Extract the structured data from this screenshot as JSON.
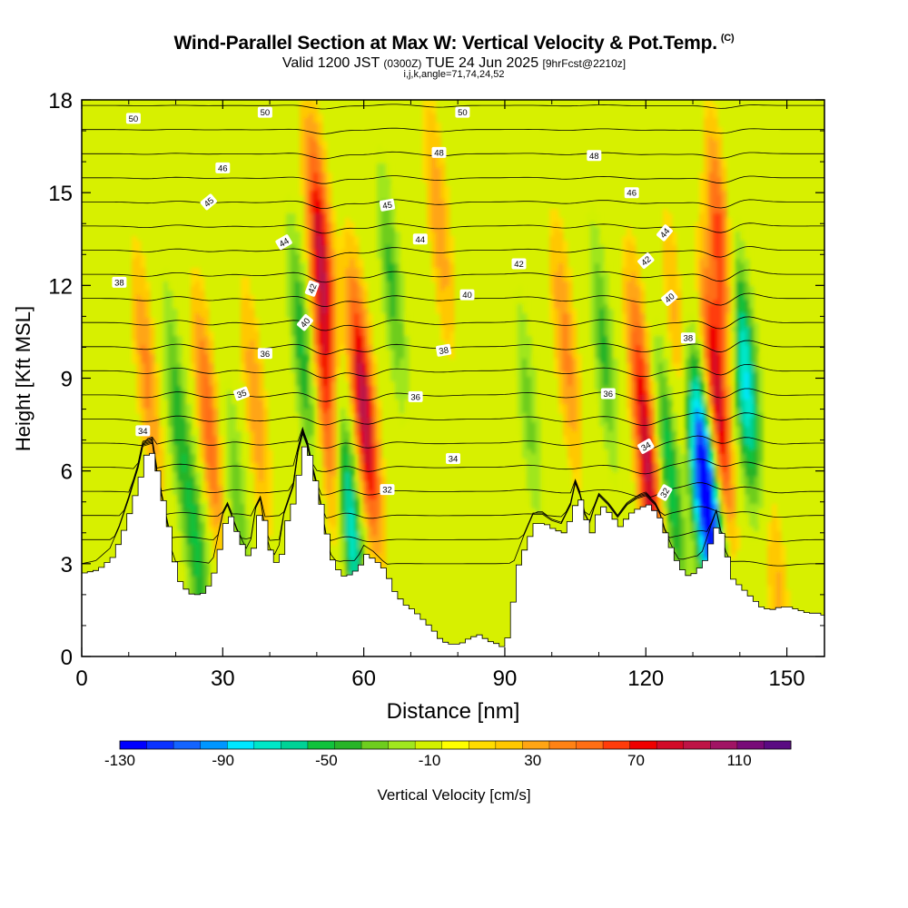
{
  "header": {
    "title": "Wind-Parallel Section at Max W: Vertical Velocity & Pot.Temp.",
    "copyright": "(C)",
    "valid_prefix": "Valid 1200 JST",
    "valid_utc": "(0300Z)",
    "valid_date": "TUE 24 Jun 2025",
    "forecast": "[9hrFcst@2210z]",
    "grid_info": "i,j,k,angle=71,74,24,52"
  },
  "chart_data": {
    "type": "heatmap",
    "xlabel": "Distance [nm]",
    "ylabel": "Height [Kft MSL]",
    "xlim": [
      0,
      158
    ],
    "ylim": [
      0,
      18
    ],
    "x_ticks": [
      0,
      30,
      60,
      90,
      120,
      150
    ],
    "y_ticks": [
      0,
      3,
      6,
      9,
      12,
      15,
      18
    ],
    "colorbar": {
      "label": "Vertical Velocity [cm/s]",
      "range": [
        -130,
        130
      ],
      "tick_values": [
        -130,
        -90,
        -50,
        -10,
        30,
        70,
        110
      ],
      "colors": [
        "#0000ff",
        "#0a32ff",
        "#1464ff",
        "#0096ff",
        "#00e6ff",
        "#00e6c8",
        "#00d296",
        "#10c23c",
        "#28b428",
        "#6ecd1e",
        "#a0e61e",
        "#d2f000",
        "#ffff00",
        "#ffdc00",
        "#ffc800",
        "#ffa514",
        "#ff8214",
        "#ff6e14",
        "#ff3c0a",
        "#f00000",
        "#d20a28",
        "#be1446",
        "#a01464",
        "#780a78",
        "#5a0a82"
      ]
    },
    "terrain": {
      "x": [
        0,
        3,
        6,
        8,
        10,
        12,
        13,
        15,
        16,
        18,
        19,
        20,
        21,
        22,
        23,
        25,
        27,
        28,
        29,
        30,
        31,
        33,
        35,
        36,
        37,
        38,
        39,
        40,
        41,
        42,
        43,
        45,
        46,
        47,
        48,
        49,
        50,
        51,
        52,
        53,
        54,
        55,
        56,
        57,
        58,
        59,
        60,
        62,
        64,
        66,
        68,
        70,
        72,
        74,
        76,
        78,
        80,
        82,
        84,
        86,
        88,
        89,
        90,
        91,
        92,
        94,
        96,
        98,
        100,
        102,
        104,
        105,
        106,
        107,
        108,
        109,
        110,
        112,
        114,
        116,
        118,
        120,
        122,
        123,
        124,
        126,
        128,
        130,
        132,
        134,
        135,
        136,
        138,
        140,
        142,
        144,
        146,
        148,
        150,
        152,
        154,
        156,
        158
      ],
      "z": [
        2.7,
        2.8,
        3.2,
        3.9,
        4.8,
        5.8,
        6.5,
        6.6,
        5.6,
        4.2,
        3.2,
        2.5,
        2.3,
        2.1,
        2.0,
        2.0,
        2.4,
        2.9,
        3.6,
        4.3,
        4.6,
        3.8,
        3.2,
        3.5,
        4.5,
        4.8,
        3.8,
        3.2,
        3.0,
        3.3,
        4.3,
        5.2,
        6.3,
        6.9,
        6.5,
        5.8,
        5.2,
        4.5,
        3.6,
        3.0,
        2.8,
        2.6,
        2.6,
        2.7,
        2.8,
        3.0,
        3.3,
        3.1,
        2.8,
        2.1,
        1.7,
        1.5,
        1.2,
        0.9,
        0.5,
        0.4,
        0.4,
        0.6,
        0.7,
        0.5,
        0.4,
        0.3,
        0.6,
        1.5,
        2.8,
        3.6,
        4.3,
        4.3,
        4.1,
        4.0,
        4.6,
        5.3,
        4.9,
        4.3,
        4.0,
        4.5,
        4.9,
        4.6,
        4.2,
        4.6,
        4.8,
        4.9,
        4.6,
        4.3,
        3.8,
        3.1,
        2.6,
        2.7,
        3.1,
        4.0,
        4.4,
        3.7,
        2.5,
        2.2,
        1.9,
        1.6,
        1.5,
        1.6,
        1.6,
        1.5,
        1.4,
        1.4,
        1.3
      ]
    },
    "updraft_cores": [
      {
        "x": 27,
        "z": 7.5,
        "w": 55
      },
      {
        "x": 14,
        "z": 9,
        "w": 40
      },
      {
        "x": 37,
        "z": 8,
        "w": 35
      },
      {
        "x": 51,
        "z": 13,
        "w": 85
      },
      {
        "x": 52,
        "z": 8,
        "w": 60
      },
      {
        "x": 60,
        "z": 8,
        "w": 100
      },
      {
        "x": 76,
        "z": 14,
        "w": 35
      },
      {
        "x": 103,
        "z": 10,
        "w": 40
      },
      {
        "x": 119,
        "z": 9,
        "w": 45
      },
      {
        "x": 121,
        "z": 5,
        "w": 70
      },
      {
        "x": 127,
        "z": 10,
        "w": 40
      },
      {
        "x": 135,
        "z": 8,
        "w": 100
      },
      {
        "x": 137,
        "z": 12,
        "w": 120
      },
      {
        "x": 148,
        "z": 2,
        "w": 30
      }
    ],
    "downdraft_cores": [
      {
        "x": 20,
        "z": 8,
        "w": -40
      },
      {
        "x": 25,
        "z": 3,
        "w": -45
      },
      {
        "x": 33,
        "z": 5,
        "w": -35
      },
      {
        "x": 47,
        "z": 10,
        "w": -50
      },
      {
        "x": 57,
        "z": 4.5,
        "w": -80
      },
      {
        "x": 66,
        "z": 12,
        "w": -40
      },
      {
        "x": 95,
        "z": 8,
        "w": -30
      },
      {
        "x": 111,
        "z": 10,
        "w": -40
      },
      {
        "x": 125,
        "z": 6,
        "w": -60
      },
      {
        "x": 131,
        "z": 6,
        "w": -85
      },
      {
        "x": 134,
        "z": 5,
        "w": -110
      },
      {
        "x": 139,
        "z": 10,
        "w": -100
      },
      {
        "x": 142,
        "z": 9,
        "w": -50
      }
    ],
    "theta_contours": {
      "levels": [
        31,
        32,
        33,
        34,
        35,
        36,
        37,
        38,
        39,
        40,
        41,
        42,
        43,
        44,
        45,
        46,
        47,
        48,
        49,
        50,
        51
      ],
      "labels": [
        {
          "text": "34",
          "x": 13,
          "z": 7.3,
          "angle": 0
        },
        {
          "text": "35",
          "x": 34,
          "z": 8.5,
          "angle": 20
        },
        {
          "text": "36",
          "x": 39,
          "z": 9.8,
          "angle": 0
        },
        {
          "text": "38",
          "x": 8,
          "z": 12.1,
          "angle": 0
        },
        {
          "text": "44",
          "x": 43,
          "z": 13.4,
          "angle": 30
        },
        {
          "text": "45",
          "x": 27,
          "z": 14.7,
          "angle": 40
        },
        {
          "text": "46",
          "x": 30,
          "z": 15.8,
          "angle": 0
        },
        {
          "text": "50",
          "x": 11,
          "z": 17.4,
          "angle": 0
        },
        {
          "text": "50",
          "x": 39,
          "z": 17.6,
          "angle": 0
        },
        {
          "text": "42",
          "x": 49,
          "z": 11.9,
          "angle": 70
        },
        {
          "text": "40",
          "x": 47.5,
          "z": 10.8,
          "angle": 50
        },
        {
          "text": "45",
          "x": 65,
          "z": 14.6,
          "angle": 10
        },
        {
          "text": "44",
          "x": 72,
          "z": 13.5,
          "angle": 0
        },
        {
          "text": "48",
          "x": 76,
          "z": 16.3,
          "angle": 0
        },
        {
          "text": "50",
          "x": 81,
          "z": 17.6,
          "angle": 0
        },
        {
          "text": "42",
          "x": 93,
          "z": 12.7,
          "angle": 0
        },
        {
          "text": "40",
          "x": 82,
          "z": 11.7,
          "angle": 0
        },
        {
          "text": "38",
          "x": 77,
          "z": 9.9,
          "angle": 10
        },
        {
          "text": "36",
          "x": 71,
          "z": 8.4,
          "angle": 0
        },
        {
          "text": "34",
          "x": 79,
          "z": 6.4,
          "angle": 0
        },
        {
          "text": "32",
          "x": 65,
          "z": 5.4,
          "angle": 0
        },
        {
          "text": "48",
          "x": 109,
          "z": 16.2,
          "angle": 0
        },
        {
          "text": "46",
          "x": 117,
          "z": 15.0,
          "angle": 0
        },
        {
          "text": "44",
          "x": 124,
          "z": 13.7,
          "angle": 50
        },
        {
          "text": "42",
          "x": 120,
          "z": 12.8,
          "angle": 40
        },
        {
          "text": "40",
          "x": 125,
          "z": 11.6,
          "angle": 40
        },
        {
          "text": "38",
          "x": 129,
          "z": 10.3,
          "angle": 0
        },
        {
          "text": "36",
          "x": 112,
          "z": 8.5,
          "angle": 0
        },
        {
          "text": "34",
          "x": 120,
          "z": 6.8,
          "angle": 30
        },
        {
          "text": "32",
          "x": 124,
          "z": 5.3,
          "angle": 60
        }
      ]
    }
  }
}
